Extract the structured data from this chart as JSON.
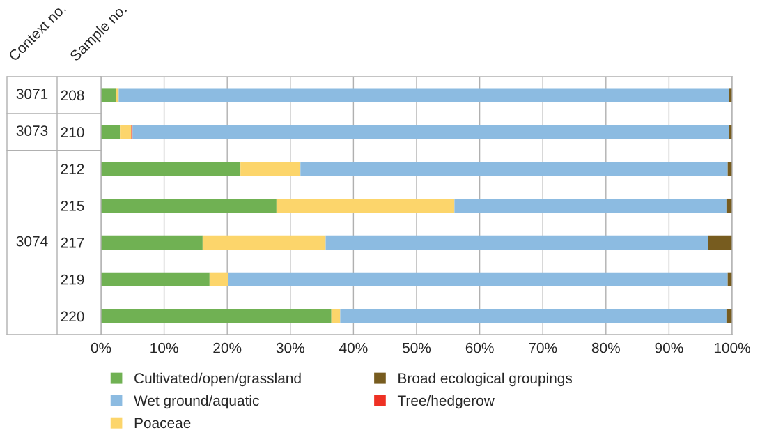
{
  "chart_data": {
    "type": "bar",
    "orientation": "horizontal",
    "stacked": true,
    "ylabel": "Sample no.",
    "categories": [
      "208",
      "210",
      "212",
      "215",
      "217",
      "219",
      "220"
    ],
    "series": [
      {
        "name": "Cultivated/open/grassland",
        "color": "#70b153",
        "values": [
          2.4,
          3.0,
          22.1,
          27.8,
          16.1,
          17.2,
          36.5
        ]
      },
      {
        "name": "Poaceae",
        "color": "#fcd56b",
        "values": [
          0.4,
          1.8,
          9.5,
          28.2,
          19.5,
          2.9,
          1.4
        ]
      },
      {
        "name": "Tree/hedgerow",
        "color": "#ee3124",
        "values": [
          0,
          0.2,
          0,
          0,
          0,
          0,
          0
        ]
      },
      {
        "name": "Wet ground/aquatic",
        "color": "#8cbbe1",
        "values": [
          96.7,
          94.5,
          67.7,
          43.1,
          60.6,
          79.2,
          61.2
        ]
      },
      {
        "name": "Broad ecological groupings",
        "color": "#775c1f",
        "values": [
          0.5,
          0.5,
          0.7,
          0.9,
          3.8,
          0.7,
          0.9
        ]
      }
    ],
    "xlim": [
      0,
      100
    ],
    "xticks": [
      {
        "value": 0,
        "label": "0%"
      },
      {
        "value": 10,
        "label": "10%"
      },
      {
        "value": 20,
        "label": "20%"
      },
      {
        "value": 30,
        "label": "30%"
      },
      {
        "value": 40,
        "label": "40%"
      },
      {
        "value": 50,
        "label": "50%"
      },
      {
        "value": 60,
        "label": "60%"
      },
      {
        "value": 70,
        "label": "70%"
      },
      {
        "value": 80,
        "label": "80%"
      },
      {
        "value": 90,
        "label": "90%"
      },
      {
        "value": 100,
        "label": "100%"
      }
    ],
    "grid": "x",
    "legend": "bottom left",
    "annotations": [
      "Context no.",
      "3071",
      "3073",
      "3074"
    ]
  }
}
